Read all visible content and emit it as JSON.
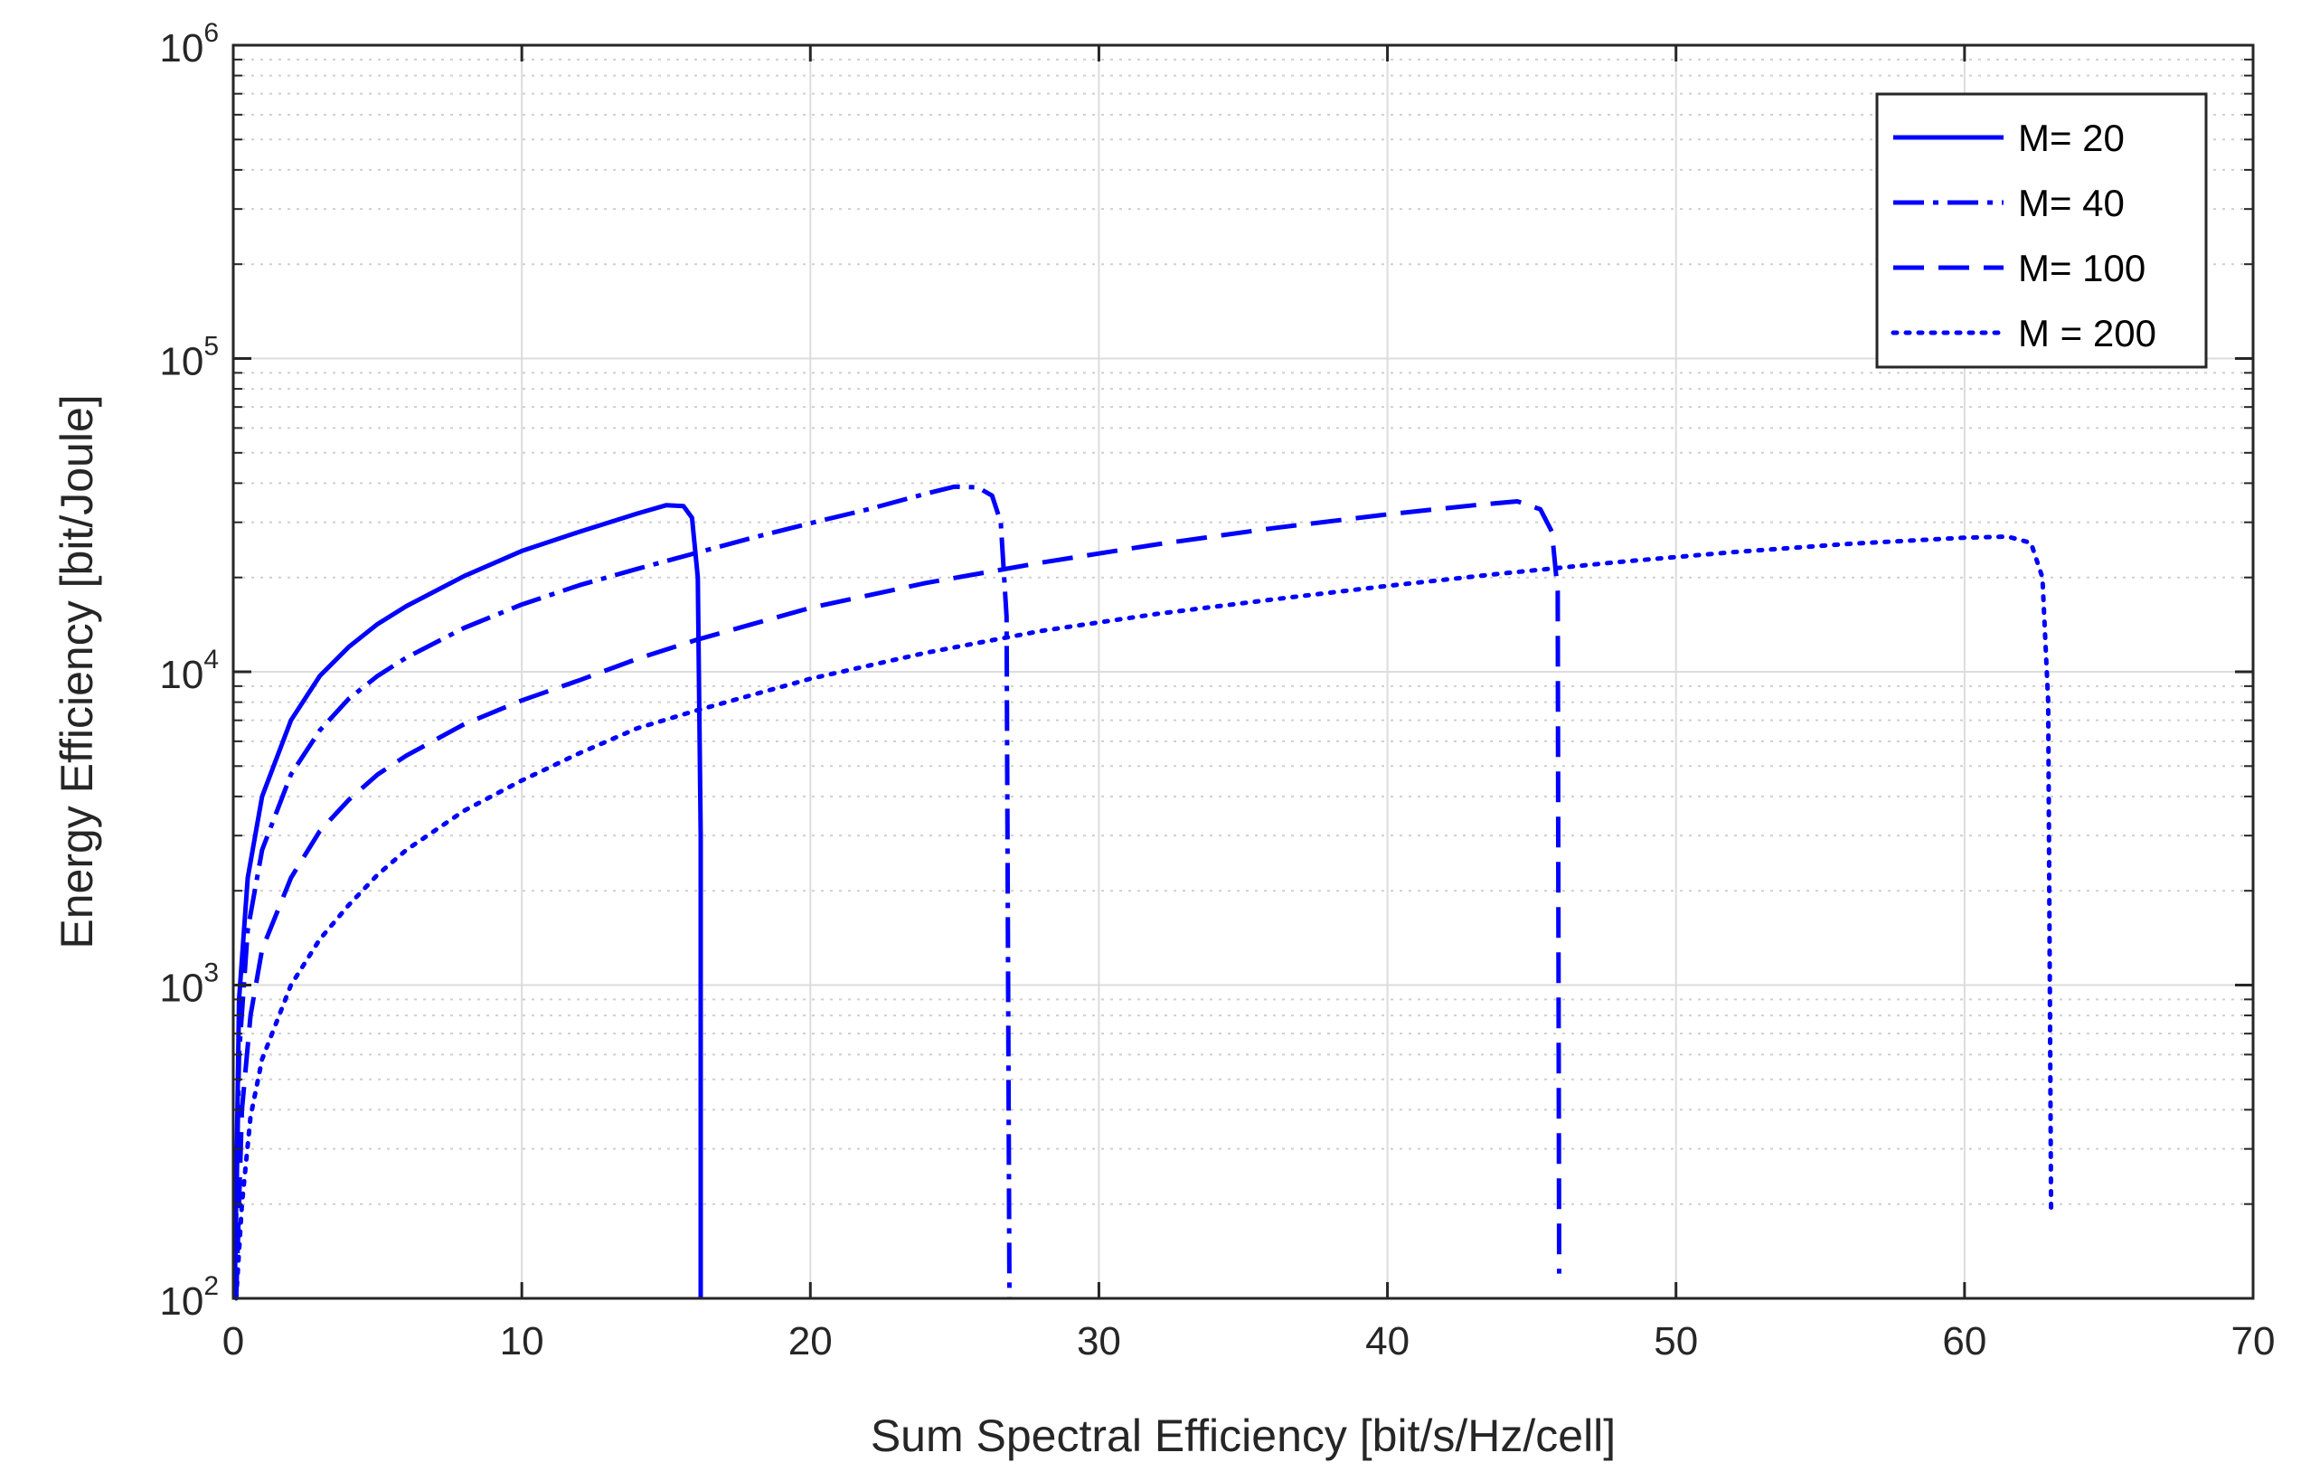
{
  "chart_data": {
    "type": "line",
    "title": "",
    "xlabel": "Sum Spectral Efficiency [bit/s/Hz/cell]",
    "ylabel": "Energy Efficiency [bit/Joule]",
    "xlim": [
      0,
      70
    ],
    "ylim": [
      100,
      1000000
    ],
    "yscale": "log",
    "grid": true,
    "x_ticks": [
      0,
      10,
      20,
      30,
      40,
      50,
      60,
      70
    ],
    "x_tick_labels": [
      "0",
      "10",
      "20",
      "30",
      "40",
      "50",
      "60",
      "70"
    ],
    "y_ticks": [
      100,
      1000,
      10000,
      100000,
      1000000
    ],
    "y_tick_labels": [
      {
        "base": "10",
        "exp": "2"
      },
      {
        "base": "10",
        "exp": "3"
      },
      {
        "base": "10",
        "exp": "4"
      },
      {
        "base": "10",
        "exp": "5"
      },
      {
        "base": "10",
        "exp": "6"
      }
    ],
    "legend_position": "top-right",
    "line_color": "#0000ff",
    "series": [
      {
        "name": "M= 20",
        "style": "solid",
        "x": [
          0.05,
          0.2,
          0.5,
          1,
          2,
          3,
          4,
          5,
          6,
          8,
          10,
          12,
          14,
          15,
          15.6,
          15.9,
          16.1,
          16.2,
          16.2
        ],
        "y": [
          100,
          900,
          2200,
          4000,
          7000,
          9700,
          12000,
          14200,
          16200,
          20200,
          24300,
          28000,
          32000,
          34000,
          33800,
          31000,
          20000,
          3000,
          100
        ]
      },
      {
        "name": "M= 40",
        "style": "dashdot",
        "x": [
          0.05,
          0.2,
          0.5,
          1,
          2,
          3,
          4,
          5,
          6,
          8,
          10,
          12,
          14,
          16,
          18,
          20,
          22,
          24,
          25,
          25.8,
          26.3,
          26.6,
          26.8,
          26.9
        ],
        "y": [
          100,
          600,
          1500,
          2700,
          4700,
          6500,
          8200,
          9700,
          11100,
          13800,
          16400,
          18900,
          21300,
          23900,
          26800,
          29800,
          33000,
          37000,
          39000,
          38800,
          36500,
          30000,
          15000,
          100
        ]
      },
      {
        "name": "M= 100",
        "style": "dashed",
        "x": [
          0.1,
          0.3,
          0.6,
          1,
          2,
          3,
          4,
          5,
          6,
          8,
          10,
          12,
          14,
          16,
          18,
          20,
          24,
          28,
          32,
          36,
          40,
          43,
          44.5,
          45.3,
          45.7,
          45.9,
          45.95
        ],
        "y": [
          100,
          400,
          800,
          1300,
          2200,
          3100,
          3900,
          4700,
          5400,
          6800,
          8100,
          9400,
          11000,
          12600,
          14200,
          16000,
          19200,
          22300,
          25500,
          28700,
          31800,
          34000,
          35000,
          33000,
          28000,
          18000,
          120
        ]
      },
      {
        "name": "M = 200",
        "style": "dotted",
        "x": [
          0.1,
          0.3,
          0.6,
          1,
          2,
          3,
          4,
          5,
          6,
          8,
          10,
          12,
          14,
          16,
          20,
          24,
          28,
          32,
          36,
          40,
          44,
          48,
          52,
          56,
          60,
          61.5,
          62.3,
          62.7,
          62.9,
          63
        ],
        "y": [
          100,
          200,
          380,
          580,
          1000,
          1400,
          1800,
          2250,
          2700,
          3600,
          4500,
          5500,
          6600,
          7500,
          9500,
          11500,
          13500,
          15300,
          17000,
          18800,
          20600,
          22400,
          24100,
          25600,
          26800,
          27000,
          25800,
          20000,
          8000,
          190
        ]
      }
    ]
  }
}
